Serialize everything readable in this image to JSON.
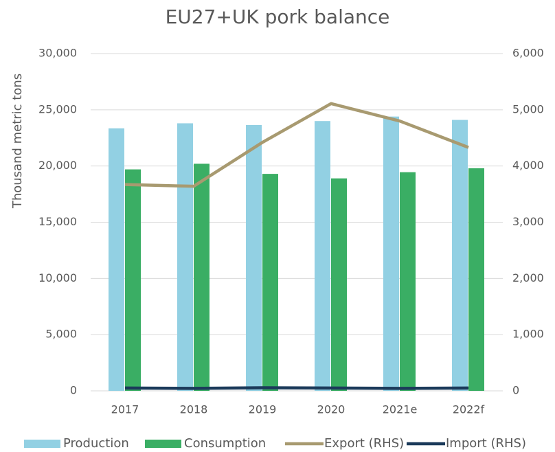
{
  "chart_data": {
    "type": "bar",
    "title": "EU27+UK pork balance",
    "y_label": "Thousand metric tons",
    "categories": [
      "2017",
      "2018",
      "2019",
      "2020",
      "2021e",
      "2022f"
    ],
    "series": [
      {
        "name": "Production",
        "type": "bar",
        "color": "#92d0e3",
        "values": [
          23350,
          23800,
          23650,
          24000,
          24400,
          24100
        ]
      },
      {
        "name": "Consumption",
        "type": "bar",
        "color": "#3aae64",
        "values": [
          19700,
          20200,
          19300,
          18900,
          19450,
          19800
        ]
      },
      {
        "name": "Export (RHS)",
        "type": "line",
        "axis": "y2",
        "color": "#a89a70",
        "values": [
          3670,
          3640,
          4420,
          5110,
          4800,
          4330
        ]
      },
      {
        "name": "Import (RHS)",
        "type": "line",
        "axis": "y2",
        "color": "#1b3a5a",
        "values": [
          50,
          45,
          55,
          50,
          45,
          50
        ]
      }
    ],
    "ylim": [
      0,
      30000
    ],
    "yticks": [
      0,
      {
        "value": 5000,
        "label": "5,000"
      },
      {
        "value": 10000,
        "label": "10,000"
      },
      {
        "value": 15000,
        "label": "15,000"
      },
      {
        "value": 20000,
        "label": "20,000"
      },
      {
        "value": 25000,
        "label": "25,000"
      },
      {
        "value": 30000,
        "label": "30,000"
      }
    ],
    "y2lim": [
      0,
      6000
    ],
    "y2ticks": [
      0,
      {
        "value": 1000,
        "label": "1,000"
      },
      {
        "value": 2000,
        "label": "2,000"
      },
      {
        "value": 3000,
        "label": "3,000"
      },
      {
        "value": 4000,
        "label": "4,000"
      },
      {
        "value": 5000,
        "label": "5,000"
      },
      {
        "value": 6000,
        "label": "6,000"
      }
    ],
    "grid": true,
    "legend": "bottom"
  }
}
